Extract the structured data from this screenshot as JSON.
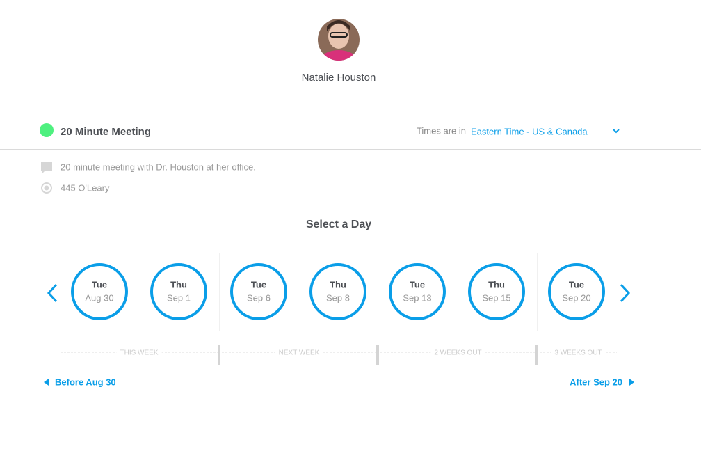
{
  "header": {
    "name": "Natalie Houston"
  },
  "meeting": {
    "title": "20 Minute Meeting"
  },
  "timezone": {
    "label": "Times are in",
    "value": "Eastern Time - US & Canada"
  },
  "details": {
    "description": "20 minute meeting with Dr. Houston at her office.",
    "location": "445 O'Leary"
  },
  "section_title": "Select a Day",
  "days": [
    {
      "weekday": "Tue",
      "date": "Aug 30"
    },
    {
      "weekday": "Thu",
      "date": "Sep 1"
    },
    {
      "weekday": "Tue",
      "date": "Sep 6"
    },
    {
      "weekday": "Thu",
      "date": "Sep 8"
    },
    {
      "weekday": "Tue",
      "date": "Sep 13"
    },
    {
      "weekday": "Thu",
      "date": "Sep 15"
    },
    {
      "weekday": "Tue",
      "date": "Sep 20"
    }
  ],
  "weeks": [
    "THIS WEEK",
    "NEXT WEEK",
    "2 WEEKS OUT",
    "3 WEEKS OUT"
  ],
  "nav": {
    "before": "Before Aug 30",
    "after": "After Sep 20"
  }
}
